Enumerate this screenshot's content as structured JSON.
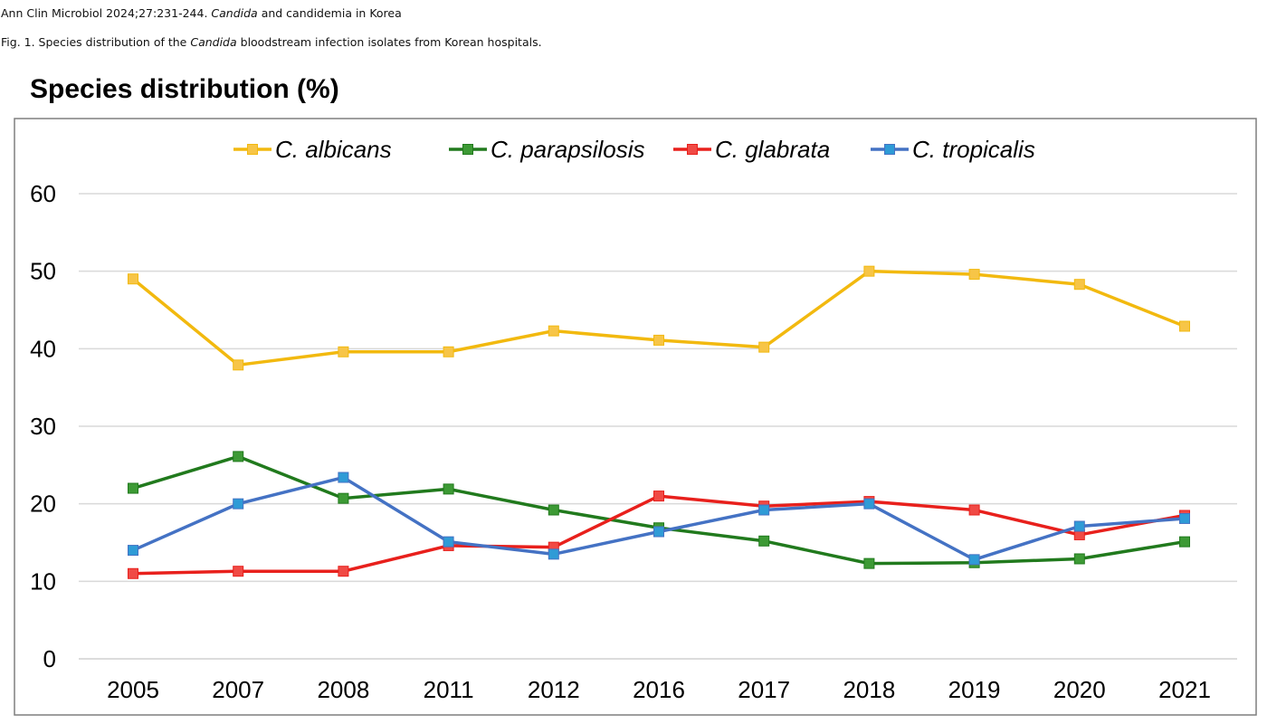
{
  "header": {
    "citation_prefix": "Ann Clin Microbiol 2024;27:231-244. ",
    "citation_italic": "Candida",
    "citation_suffix": " and candidemia in Korea",
    "caption_prefix": "Fig. 1. Species distribution of the ",
    "caption_italic": "Candida",
    "caption_suffix": " bloodstream infection isolates from Korean hospitals."
  },
  "chart_data": {
    "type": "line",
    "title": "Species distribution (%)",
    "xlabel": "",
    "ylabel": "",
    "categories": [
      "2005",
      "2007",
      "2008",
      "2011",
      "2012",
      "2016",
      "2017",
      "2018",
      "2019",
      "2020",
      "2021"
    ],
    "ylim": [
      0,
      60
    ],
    "yticks": [
      0,
      10,
      20,
      30,
      40,
      50,
      60
    ],
    "grid": true,
    "legend_position": "top",
    "series": [
      {
        "name": "C. albicans",
        "color": "#f2b90f",
        "marker_color": "#f7c547",
        "values": [
          49.0,
          37.9,
          39.6,
          39.6,
          42.3,
          41.1,
          40.2,
          50.0,
          49.6,
          48.3,
          42.9
        ]
      },
      {
        "name": "C. parapsilosis",
        "color": "#217a1d",
        "marker_color": "#3d9a35",
        "values": [
          22.0,
          26.1,
          20.7,
          21.9,
          19.2,
          16.9,
          15.2,
          12.3,
          12.4,
          12.9,
          15.1
        ]
      },
      {
        "name": "C. glabrata",
        "color": "#e8201c",
        "marker_color": "#f04a45",
        "values": [
          11.0,
          11.3,
          11.3,
          14.6,
          14.4,
          21.0,
          19.7,
          20.3,
          19.2,
          16.0,
          18.5
        ]
      },
      {
        "name": "C. tropicalis",
        "color": "#4472c4",
        "marker_color": "#2f9bd6",
        "values": [
          14.0,
          20.0,
          23.4,
          15.1,
          13.5,
          16.4,
          19.2,
          20.0,
          12.8,
          17.1,
          18.1
        ]
      }
    ]
  }
}
